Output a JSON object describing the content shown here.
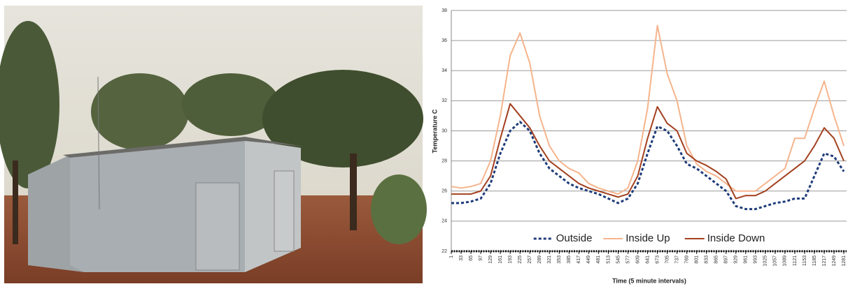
{
  "chart_data": {
    "type": "line",
    "y_label": "Temperature C",
    "x_label": "Time (5 minute intervals)",
    "x": [
      1,
      33,
      65,
      97,
      129,
      161,
      193,
      225,
      257,
      289,
      321,
      353,
      385,
      417,
      449,
      481,
      513,
      545,
      577,
      609,
      641,
      673,
      705,
      737,
      769,
      801,
      833,
      865,
      897,
      929,
      961,
      993,
      1025,
      1057,
      1089,
      1121,
      1153,
      1185,
      1217,
      1249,
      1281
    ],
    "series": [
      {
        "name": "Outside",
        "color": "#1f3c7a",
        "dash": true,
        "values": [
          25.2,
          25.2,
          25.3,
          25.5,
          26.5,
          28.5,
          30,
          30.6,
          30,
          28.5,
          27.5,
          27,
          26.5,
          26.2,
          26,
          25.8,
          25.5,
          25.2,
          25.5,
          26.5,
          28.5,
          30.3,
          30,
          29,
          27.8,
          27.5,
          27,
          26.5,
          26,
          25,
          24.8,
          24.8,
          25,
          25.2,
          25.3,
          25.5,
          25.5,
          27,
          28.5,
          28.3,
          27.3
        ]
      },
      {
        "name": "Inside Up",
        "color": "#f5b48c",
        "dash": false,
        "values": [
          26.3,
          26.2,
          26.3,
          26.5,
          28,
          31,
          35,
          36.5,
          34.5,
          31,
          29,
          28,
          27.5,
          27.2,
          26.5,
          26.2,
          26,
          25.8,
          26.2,
          28,
          31.5,
          37,
          33.8,
          32,
          29,
          27.8,
          27.3,
          27,
          26.5,
          26,
          26,
          26,
          26.5,
          27,
          27.5,
          29.5,
          29.5,
          31.5,
          33.3,
          31,
          29
        ]
      },
      {
        "name": "Inside Down",
        "color": "#a3401f",
        "dash": false,
        "values": [
          25.8,
          25.8,
          25.8,
          26,
          27,
          29.5,
          31.8,
          31,
          30.2,
          29,
          28,
          27.5,
          27,
          26.5,
          26.2,
          26,
          25.8,
          25.6,
          25.8,
          27,
          29.5,
          31.6,
          30.5,
          30,
          28.5,
          28,
          27.7,
          27.3,
          26.8,
          25.5,
          25.7,
          25.7,
          26,
          26.5,
          27,
          27.5,
          28,
          29,
          30.2,
          29.5,
          28
        ]
      }
    ],
    "xlim": [
      1,
      1290
    ],
    "xticks": [
      1,
      33,
      65,
      97,
      129,
      161,
      193,
      225,
      257,
      289,
      321,
      353,
      385,
      417,
      449,
      481,
      513,
      545,
      577,
      609,
      641,
      673,
      705,
      737,
      769,
      801,
      833,
      865,
      897,
      929,
      961,
      993,
      1025,
      1057,
      1089,
      1121,
      1153,
      1185,
      1217,
      1249,
      1281
    ],
    "ylim": [
      22,
      38
    ],
    "yticks": [
      22,
      24,
      26,
      28,
      30,
      32,
      34,
      36,
      38
    ],
    "grid": true,
    "legend": "bottom"
  }
}
